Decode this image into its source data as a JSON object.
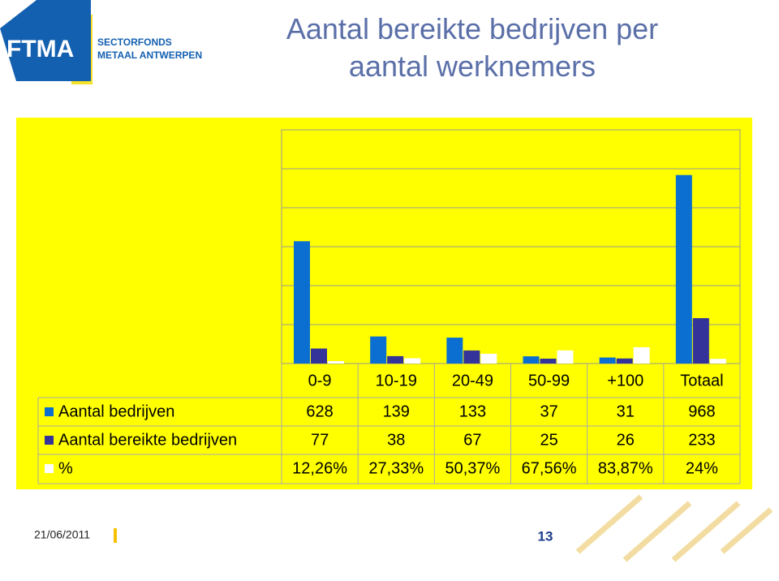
{
  "logo": {
    "mark": "FTMA",
    "line1": "SECTORFONDS",
    "line2": "METAAL ANTWERPEN"
  },
  "chart_data": {
    "type": "bar",
    "title": "Aantal bereikte bedrijven per aantal werknemers",
    "categories": [
      "0-9",
      "10-19",
      "20-49",
      "50-99",
      "+100",
      "Totaal"
    ],
    "series": [
      {
        "name": "Aantal bedrijven",
        "color": "#0a6fd0",
        "values": [
          628,
          139,
          133,
          37,
          31,
          968
        ]
      },
      {
        "name": "Aantal bereikte bedrijven",
        "color": "#333399",
        "values": [
          77,
          38,
          67,
          25,
          26,
          233
        ]
      },
      {
        "name": "%",
        "color": "#ffffff",
        "values": [
          12.26,
          27.33,
          50.37,
          67.56,
          83.87,
          24
        ],
        "value_labels": [
          "12,26%",
          "27,33%",
          "50,37%",
          "67,56%",
          "83,87%",
          "24%"
        ]
      }
    ],
    "ylim": [
      0,
      1200
    ],
    "yticks": [
      0,
      200,
      400,
      600,
      800,
      1000,
      1200
    ],
    "grid": true
  },
  "footer": {
    "date": "21/06/2011",
    "page": "13"
  }
}
